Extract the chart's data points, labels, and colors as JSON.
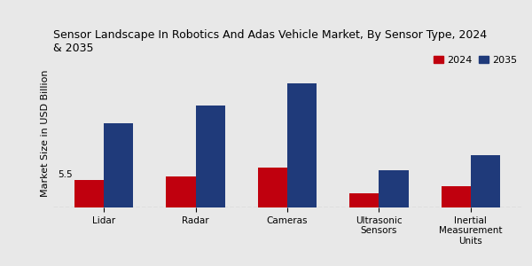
{
  "title": "Sensor Landscape In Robotics And Adas Vehicle Market, By Sensor Type, 2024\n& 2035",
  "ylabel": "Market Size in USD Billion",
  "categories": [
    "Lidar",
    "Radar",
    "Cameras",
    "Ultrasonic\nSensors",
    "Inertial\nMeasurement\nUnits"
  ],
  "values_2024": [
    5.5,
    6.2,
    8.0,
    2.8,
    4.2
  ],
  "values_2035": [
    17.0,
    20.5,
    25.0,
    7.5,
    10.5
  ],
  "color_2024": "#c0000e",
  "color_2035": "#1f3a7a",
  "annotation_label": "5.5",
  "annotation_index": 0,
  "legend_labels": [
    "2024",
    "2035"
  ],
  "bg_color": "#e8e8e8",
  "title_fontsize": 9,
  "ylabel_fontsize": 8,
  "tick_fontsize": 7.5,
  "legend_fontsize": 8,
  "bar_width": 0.32,
  "ylim": [
    0,
    30
  ]
}
